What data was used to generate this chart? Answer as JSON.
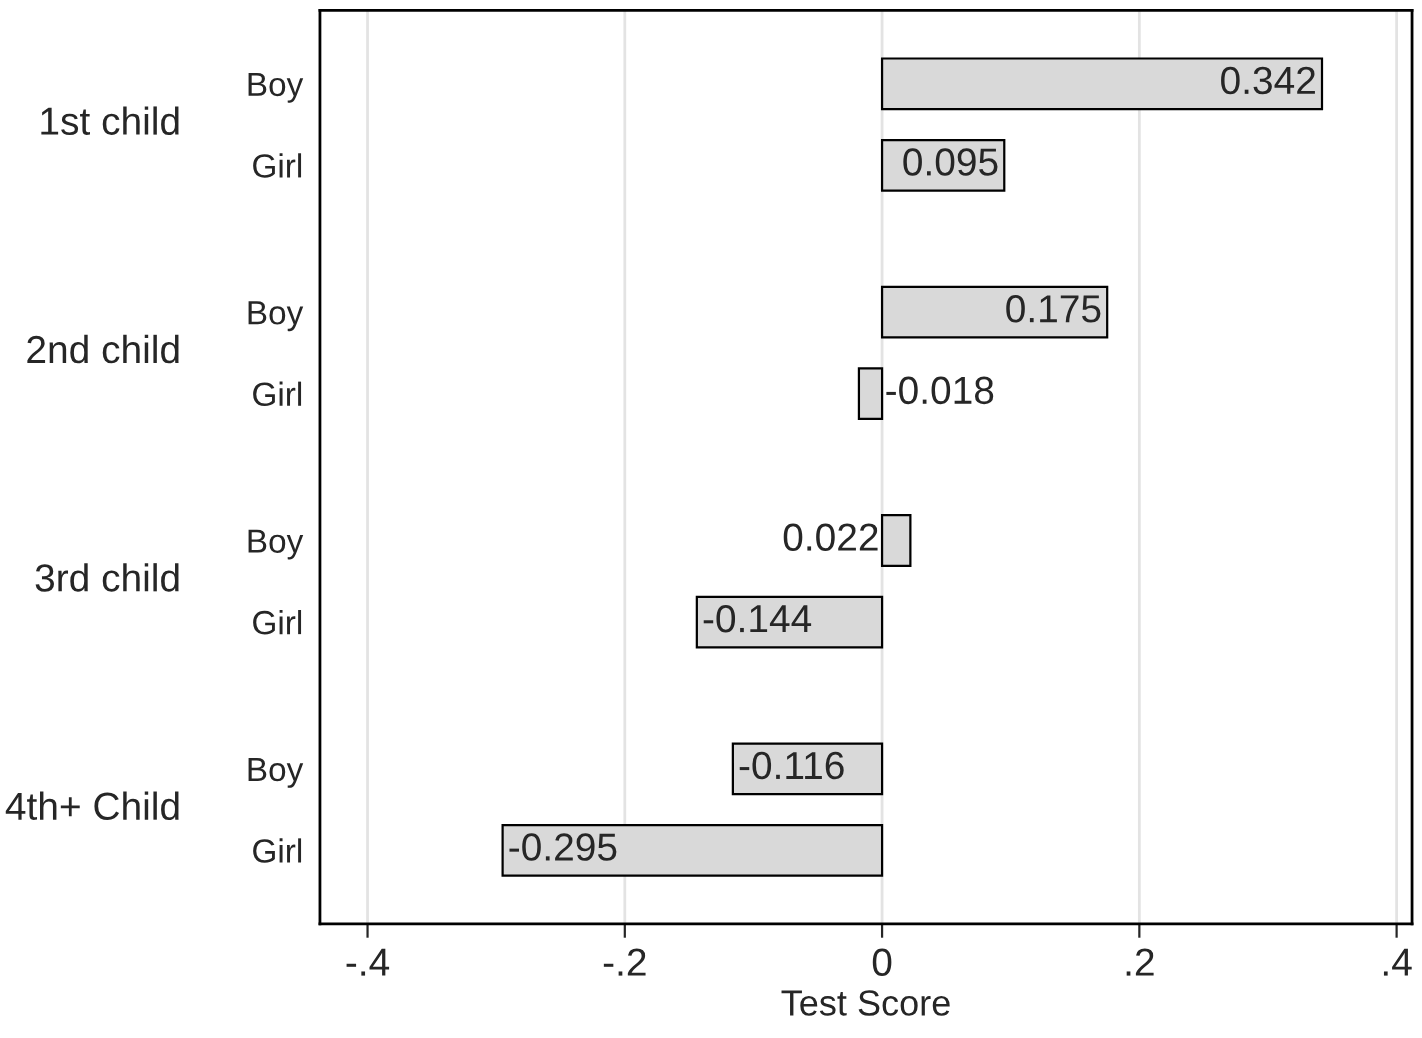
{
  "chart_data": {
    "type": "bar",
    "orientation": "horizontal",
    "categories": [
      "Boy",
      "Girl",
      "Boy",
      "Girl",
      "Boy",
      "Girl",
      "Boy",
      "Girl"
    ],
    "values": [
      0.342,
      0.095,
      0.175,
      -0.018,
      0.022,
      -0.144,
      -0.116,
      -0.295
    ],
    "color": "#d9d9d9",
    "annotations": [
      "1st child",
      "2nd child",
      "3rd child",
      "4th+ Child"
    ],
    "xlabel": "Test Score",
    "xlim": [
      -0.437,
      0.412
    ],
    "xticks": [
      {
        "value": -0.4,
        "label": "-.4"
      },
      {
        "value": -0.2,
        "label": "-.2"
      },
      0,
      {
        "value": 0.2,
        "label": ".2"
      },
      {
        "value": 0.4,
        "label": ".4"
      }
    ],
    "grid": "x",
    "data_labels": true
  }
}
